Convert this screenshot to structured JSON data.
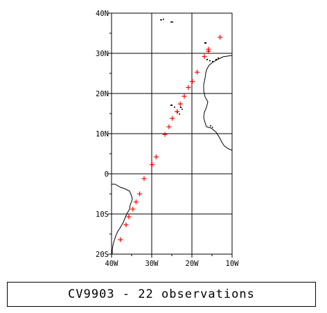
{
  "map": {
    "lon_range": [
      -40,
      -10
    ],
    "lat_range": [
      -20,
      40
    ],
    "lon_ticks": [
      -40,
      -30,
      -20,
      -10
    ],
    "lat_ticks": [
      -20,
      -10,
      0,
      10,
      20,
      30,
      40
    ],
    "lon_tick_labels": [
      "40W",
      "30W",
      "20W",
      "10W"
    ],
    "lat_tick_labels": [
      "20S",
      "10S",
      "0",
      "10N",
      "20N",
      "30N",
      "40N"
    ],
    "grid": true,
    "observation_marker": "plus",
    "observation_color": "#ff0000",
    "coastline_color": "#000000",
    "observations": [
      {
        "lon": -13.0,
        "lat": 34.0
      },
      {
        "lon": -15.9,
        "lat": 31.0
      },
      {
        "lon": -15.9,
        "lat": 30.5
      },
      {
        "lon": -16.9,
        "lat": 29.2
      },
      {
        "lon": -18.7,
        "lat": 25.3
      },
      {
        "lon": -19.9,
        "lat": 23.0
      },
      {
        "lon": -20.9,
        "lat": 21.5
      },
      {
        "lon": -21.9,
        "lat": 19.3
      },
      {
        "lon": -22.9,
        "lat": 17.4
      },
      {
        "lon": -23.7,
        "lat": 15.5
      },
      {
        "lon": -24.9,
        "lat": 13.8
      },
      {
        "lon": -25.7,
        "lat": 11.7
      },
      {
        "lon": -26.7,
        "lat": 9.8
      },
      {
        "lon": -28.9,
        "lat": 4.2
      },
      {
        "lon": -29.9,
        "lat": 2.3
      },
      {
        "lon": -31.9,
        "lat": -1.2
      },
      {
        "lon": -33.0,
        "lat": -5.0
      },
      {
        "lon": -33.9,
        "lat": -7.0
      },
      {
        "lon": -34.7,
        "lat": -8.8
      },
      {
        "lon": -35.7,
        "lat": -10.7
      },
      {
        "lon": -36.4,
        "lat": -12.7
      },
      {
        "lon": -37.8,
        "lat": -16.4
      }
    ]
  },
  "caption": "CV9903 - 22 observations"
}
